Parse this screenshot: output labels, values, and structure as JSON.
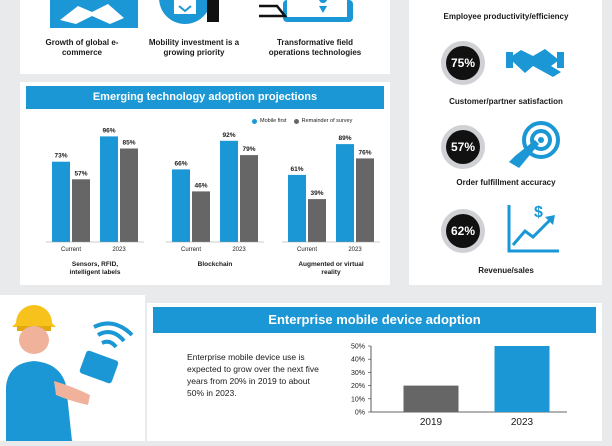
{
  "top_items": [
    {
      "icon": "handshake-icon",
      "label": "Growth of global e-commerce"
    },
    {
      "icon": "tablet-icon",
      "label": "Mobility investment is a growing priority"
    },
    {
      "icon": "location-icon",
      "label": "Transformative field operations technologies"
    }
  ],
  "emerging": {
    "title": "Emerging technology adoption projections",
    "legend": [
      {
        "label": "Mobile first",
        "color": "#1b97d5"
      },
      {
        "label": "Remainder of survey",
        "color": "#666666"
      }
    ]
  },
  "right_stats": {
    "top_label": "Employee productivity/efficiency",
    "items": [
      {
        "value": "75%",
        "label": "Customer/partner satisfaction",
        "icon": "handshake-icon"
      },
      {
        "value": "57%",
        "label": "Order fulfillment accuracy",
        "icon": "target-icon"
      },
      {
        "value": "62%",
        "label": "Revenue/sales",
        "icon": "growth-chart-icon"
      }
    ]
  },
  "enterprise": {
    "title": "Enterprise mobile device adoption",
    "text": "Enterprise mobile device use is expected to grow over the next five years from 20% in 2019 to about 50% in 2023."
  },
  "colors": {
    "blue": "#1b97d5",
    "gray": "#666666"
  },
  "chart_data": [
    {
      "type": "bar",
      "title": "Emerging technology adoption projections",
      "groups": [
        {
          "name": "Sensors, RFID, intelligent labels",
          "categories": [
            "Current",
            "2023"
          ],
          "series": [
            {
              "name": "Mobile first",
              "values": [
                73,
                96
              ],
              "labels": [
                "73%",
                "96%"
              ]
            },
            {
              "name": "Remainder of survey",
              "values": [
                57,
                85
              ],
              "labels": [
                "57%",
                "85%"
              ]
            }
          ]
        },
        {
          "name": "Blockchain",
          "categories": [
            "Current",
            "2023"
          ],
          "series": [
            {
              "name": "Mobile first",
              "values": [
                66,
                92
              ],
              "labels": [
                "66%",
                "92%"
              ]
            },
            {
              "name": "Remainder of survey",
              "values": [
                46,
                79
              ],
              "labels": [
                "46%",
                "79%"
              ]
            }
          ]
        },
        {
          "name": "Augmented or virtual reality",
          "categories": [
            "Current",
            "2023"
          ],
          "series": [
            {
              "name": "Mobile first",
              "values": [
                61,
                89
              ],
              "labels": [
                "61%",
                "89%"
              ]
            },
            {
              "name": "Remainder of survey",
              "values": [
                39,
                76
              ],
              "labels": [
                "39%",
                "76%"
              ]
            }
          ]
        }
      ]
    },
    {
      "type": "bar",
      "title": "Enterprise mobile device adoption",
      "categories": [
        "2019",
        "2023"
      ],
      "values": [
        20,
        50
      ],
      "ylim": [
        0,
        50
      ],
      "yticks": [
        "0%",
        "10%",
        "20%",
        "30%",
        "40%",
        "50%"
      ]
    }
  ]
}
